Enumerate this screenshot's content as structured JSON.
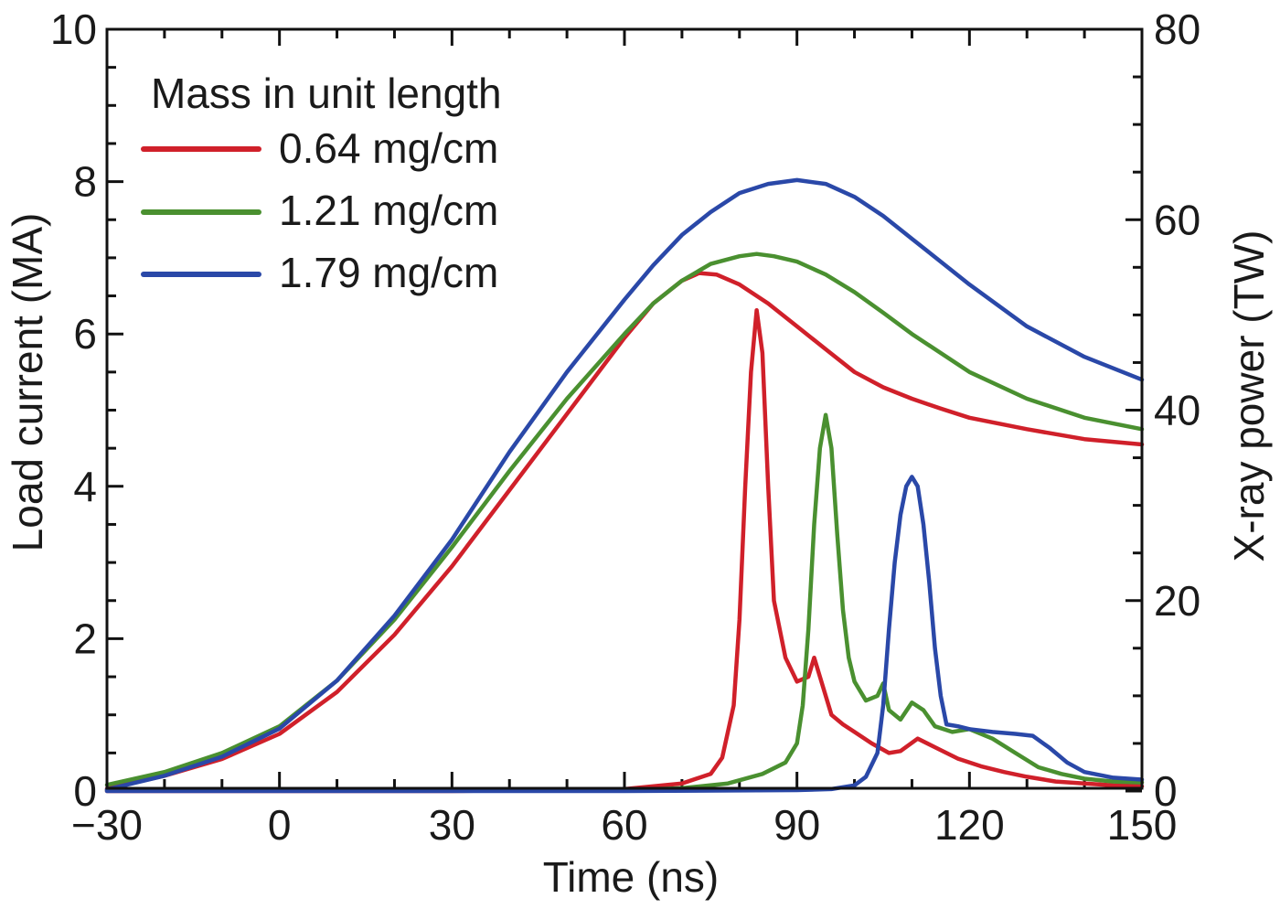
{
  "chart_data": {
    "type": "line",
    "title": "",
    "xlabel": "Time (ns)",
    "ylabel": "Load current (MA)",
    "y2label": "X-ray power (TW)",
    "xlim": [
      -30,
      150
    ],
    "ylim": [
      0,
      10
    ],
    "y2lim": [
      0,
      80
    ],
    "x_ticks": [
      -30,
      0,
      30,
      60,
      90,
      120,
      150
    ],
    "x_tick_labels": [
      "−30",
      "0",
      "30",
      "60",
      "90",
      "120",
      "150"
    ],
    "x_minor_step": 10,
    "y_ticks": [
      0,
      2,
      4,
      6,
      8,
      10
    ],
    "y_tick_labels": [
      "0",
      "2",
      "4",
      "6",
      "8",
      "10"
    ],
    "y_minor_step": 0.5,
    "y2_ticks": [
      0,
      20,
      40,
      60,
      80
    ],
    "y2_tick_labels": [
      "0",
      "20",
      "40",
      "60",
      "80"
    ],
    "y2_minor_step": 5,
    "grid": false,
    "legend": {
      "title": "Mass in unit length",
      "placement": "top-left",
      "entries": [
        {
          "label": "0.64 mg/cm",
          "color": "#d0202a"
        },
        {
          "label": "1.21 mg/cm",
          "color": "#4a9030"
        },
        {
          "label": "1.79 mg/cm",
          "color": "#2a48a8"
        }
      ]
    },
    "series": [
      {
        "name": "0.64 mg/cm load current",
        "legend_label": "0.64 mg/cm",
        "axis": "left",
        "color": "#d0202a",
        "x": [
          -30,
          -20,
          -10,
          0,
          10,
          20,
          30,
          40,
          50,
          60,
          65,
          70,
          73,
          76,
          80,
          85,
          90,
          95,
          100,
          105,
          110,
          115,
          120,
          130,
          140,
          150
        ],
        "y": [
          0.03,
          0.2,
          0.42,
          0.75,
          1.3,
          2.05,
          2.95,
          3.95,
          4.95,
          5.95,
          6.4,
          6.7,
          6.8,
          6.78,
          6.65,
          6.4,
          6.1,
          5.8,
          5.5,
          5.3,
          5.15,
          5.02,
          4.9,
          4.75,
          4.62,
          4.55
        ]
      },
      {
        "name": "1.21 mg/cm load current",
        "legend_label": "1.21 mg/cm",
        "axis": "left",
        "color": "#4a9030",
        "x": [
          -30,
          -20,
          -10,
          0,
          10,
          20,
          30,
          40,
          50,
          60,
          65,
          70,
          75,
          80,
          83,
          86,
          90,
          95,
          100,
          105,
          110,
          115,
          120,
          130,
          140,
          150
        ],
        "y": [
          0.08,
          0.25,
          0.5,
          0.85,
          1.45,
          2.25,
          3.2,
          4.2,
          5.15,
          6.0,
          6.4,
          6.7,
          6.92,
          7.02,
          7.05,
          7.02,
          6.95,
          6.78,
          6.55,
          6.28,
          6.0,
          5.75,
          5.5,
          5.15,
          4.9,
          4.75
        ]
      },
      {
        "name": "1.79 mg/cm load current",
        "legend_label": "1.79 mg/cm",
        "axis": "left",
        "color": "#2a48a8",
        "x": [
          -30,
          -20,
          -10,
          0,
          10,
          20,
          30,
          40,
          50,
          60,
          65,
          70,
          75,
          80,
          85,
          90,
          95,
          100,
          105,
          110,
          115,
          120,
          130,
          140,
          150
        ],
        "y": [
          0.02,
          0.2,
          0.45,
          0.82,
          1.45,
          2.3,
          3.3,
          4.45,
          5.5,
          6.45,
          6.9,
          7.3,
          7.6,
          7.85,
          7.97,
          8.02,
          7.97,
          7.8,
          7.55,
          7.25,
          6.95,
          6.65,
          6.1,
          5.7,
          5.4
        ]
      },
      {
        "name": "0.64 mg/cm X-ray power",
        "legend_label": "0.64 mg/cm",
        "axis": "right",
        "color": "#d0202a",
        "x": [
          -30,
          0,
          30,
          60,
          70,
          75,
          77,
          79,
          80,
          81,
          82,
          83,
          84,
          85,
          86,
          88,
          90,
          92,
          93,
          94,
          96,
          98,
          100,
          103,
          106,
          108,
          111,
          114,
          118,
          122,
          126,
          130,
          135,
          140,
          145,
          150
        ],
        "y": [
          0,
          0,
          0,
          0.2,
          0.8,
          1.8,
          3.5,
          9.0,
          18.0,
          32.0,
          44.0,
          50.5,
          46.0,
          32.0,
          20.0,
          14.0,
          11.5,
          12.0,
          14.0,
          12.0,
          8.0,
          7.0,
          6.2,
          5.0,
          4.0,
          4.2,
          5.5,
          4.6,
          3.4,
          2.6,
          2.0,
          1.5,
          1.0,
          0.8,
          0.6,
          0.5
        ]
      },
      {
        "name": "1.21 mg/cm X-ray power",
        "legend_label": "1.21 mg/cm",
        "axis": "right",
        "color": "#4a9030",
        "x": [
          -30,
          0,
          30,
          60,
          70,
          78,
          84,
          88,
          90,
          91,
          92,
          93,
          94,
          95,
          96,
          97,
          98,
          99,
          100,
          102,
          104,
          105,
          106,
          108,
          110,
          112,
          114,
          117,
          120,
          124,
          128,
          132,
          136,
          140,
          145,
          150
        ],
        "y": [
          0.1,
          0.1,
          0.1,
          0.1,
          0.3,
          0.8,
          1.8,
          3.0,
          5.0,
          9.0,
          17.0,
          28.0,
          36.0,
          39.5,
          36.0,
          27.0,
          19.0,
          14.0,
          11.5,
          9.5,
          10.0,
          11.3,
          8.5,
          7.5,
          9.3,
          8.5,
          6.8,
          6.2,
          6.5,
          5.5,
          4.0,
          2.5,
          1.8,
          1.3,
          1.0,
          0.9
        ]
      },
      {
        "name": "1.79 mg/cm X-ray power",
        "legend_label": "1.79 mg/cm",
        "axis": "right",
        "color": "#2a48a8",
        "x": [
          -30,
          0,
          30,
          60,
          90,
          96,
          100,
          102,
          104,
          105,
          106,
          107,
          108,
          109,
          110,
          111,
          112,
          113,
          114,
          115,
          116,
          118,
          120,
          124,
          128,
          131,
          134,
          137,
          140,
          145,
          150
        ],
        "y": [
          0,
          0,
          0,
          0,
          0.1,
          0.2,
          0.6,
          1.5,
          4.0,
          9.0,
          17.0,
          24.0,
          29.0,
          32.0,
          33.0,
          32.0,
          28.0,
          22.0,
          15.0,
          10.0,
          7.0,
          6.8,
          6.5,
          6.2,
          6.0,
          5.8,
          4.5,
          3.0,
          2.0,
          1.4,
          1.2
        ]
      }
    ]
  }
}
